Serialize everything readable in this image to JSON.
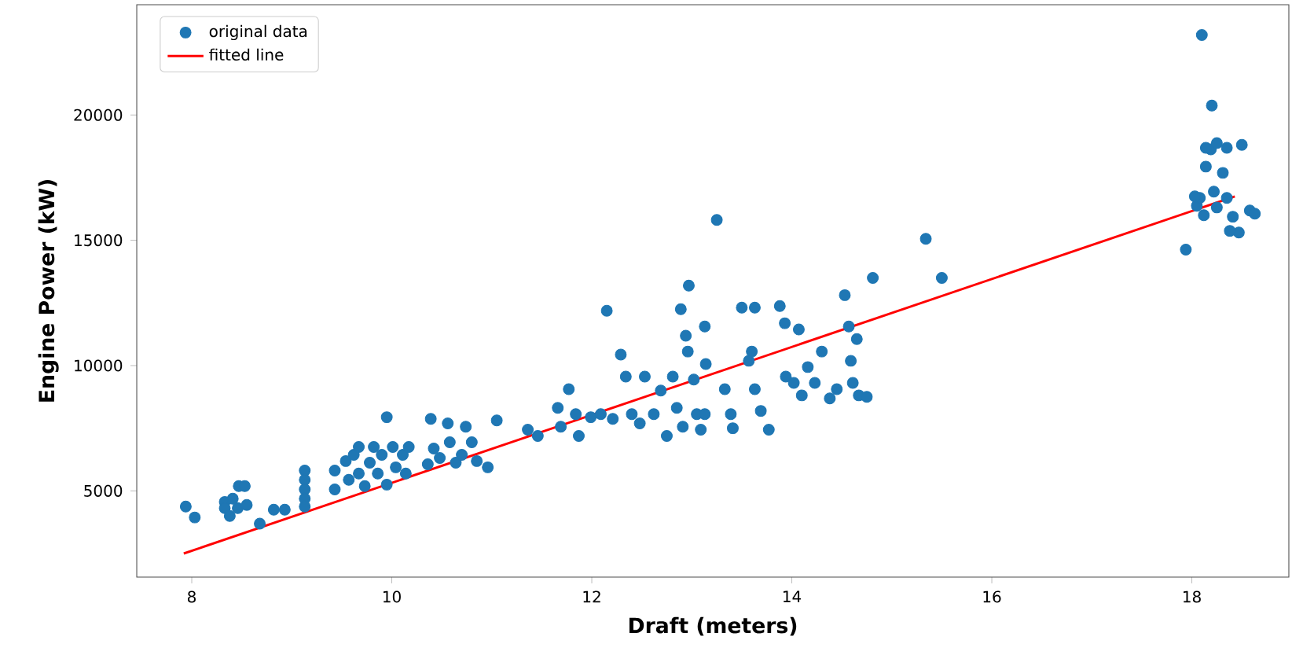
{
  "chart_data": {
    "type": "scatter",
    "xlabel": "Draft (meters)",
    "ylabel": "Engine Power (kW)",
    "xlim": [
      7.45,
      18.97
    ],
    "ylim": [
      1560,
      24400
    ],
    "xticks": [
      8,
      10,
      12,
      14,
      16,
      18
    ],
    "yticks": [
      5000,
      10000,
      15000,
      20000
    ],
    "legend": "top left",
    "grid": false,
    "series": [
      {
        "name": "original data",
        "marker": "circle",
        "color": "#1f77b4",
        "x": [
          7.94,
          8.03,
          8.33,
          8.33,
          8.38,
          8.41,
          8.46,
          8.47,
          8.53,
          8.55,
          8.68,
          8.82,
          8.93,
          9.13,
          9.13,
          9.13,
          9.13,
          9.13,
          9.43,
          9.43,
          9.54,
          9.57,
          9.62,
          9.67,
          9.67,
          9.73,
          9.78,
          9.82,
          9.86,
          9.9,
          9.95,
          9.95,
          10.01,
          10.04,
          10.11,
          10.14,
          10.17,
          10.36,
          10.39,
          10.42,
          10.48,
          10.56,
          10.58,
          10.64,
          10.7,
          10.74,
          10.8,
          10.85,
          10.96,
          11.05,
          11.36,
          11.46,
          11.66,
          11.69,
          11.77,
          11.84,
          11.87,
          11.99,
          12.09,
          12.15,
          12.21,
          12.29,
          12.34,
          12.4,
          12.48,
          12.53,
          12.62,
          12.69,
          12.75,
          12.81,
          12.85,
          12.89,
          12.91,
          12.94,
          12.96,
          12.97,
          13.02,
          13.05,
          13.09,
          13.13,
          13.14,
          13.13,
          13.25,
          13.33,
          13.39,
          13.41,
          13.5,
          13.63,
          13.6,
          13.63,
          13.57,
          13.69,
          13.77,
          13.88,
          13.93,
          13.94,
          14.02,
          14.07,
          14.1,
          14.16,
          14.23,
          14.3,
          14.38,
          14.45,
          14.53,
          14.57,
          14.59,
          14.61,
          14.65,
          14.67,
          14.75,
          14.81,
          15.34,
          15.5,
          17.94,
          18.05,
          18.08,
          18.14,
          18.19,
          18.25,
          18.35,
          18.5,
          18.14,
          18.31,
          18.22,
          18.25,
          18.35,
          18.41,
          18.47,
          18.58,
          18.63,
          18.38,
          18.12,
          18.03,
          18.1,
          18.2
        ],
        "values": [
          4375,
          3940,
          4560,
          4310,
          4000,
          4690,
          4310,
          5190,
          5190,
          4440,
          3690,
          4250,
          4250,
          5810,
          5440,
          5060,
          4690,
          4375,
          5060,
          5810,
          6190,
          5440,
          6440,
          5690,
          6750,
          5190,
          6125,
          6750,
          5690,
          6440,
          7940,
          5250,
          6750,
          5940,
          6440,
          5690,
          6750,
          6060,
          7875,
          6690,
          6310,
          7690,
          6940,
          6125,
          6440,
          7560,
          6940,
          6190,
          5940,
          7810,
          7440,
          7190,
          8310,
          7560,
          9060,
          8060,
          7190,
          7940,
          8060,
          12190,
          7875,
          10440,
          9560,
          8060,
          7690,
          9560,
          8060,
          9000,
          7190,
          9560,
          8310,
          12250,
          7560,
          11190,
          10560,
          13190,
          9440,
          8060,
          7440,
          11560,
          10060,
          8060,
          15810,
          9060,
          8060,
          7500,
          12310,
          12310,
          10560,
          9060,
          10190,
          8190,
          7440,
          12375,
          11690,
          9560,
          9310,
          11440,
          8810,
          9940,
          9310,
          10560,
          8690,
          9060,
          12810,
          11560,
          10190,
          9310,
          11060,
          8810,
          8750,
          13500,
          15060,
          13500,
          14625,
          16375,
          16690,
          17940,
          18625,
          18875,
          18690,
          18810,
          18690,
          17690,
          16940,
          16310,
          16690,
          15940,
          15310,
          16190,
          16060,
          15375,
          16000,
          16750,
          23190,
          20375
        ]
      },
      {
        "name": "fitted line",
        "type": "line",
        "marker": "none",
        "color": "#ff0000",
        "x": [
          7.92,
          18.43
        ],
        "values": [
          2500,
          16750
        ]
      }
    ]
  }
}
